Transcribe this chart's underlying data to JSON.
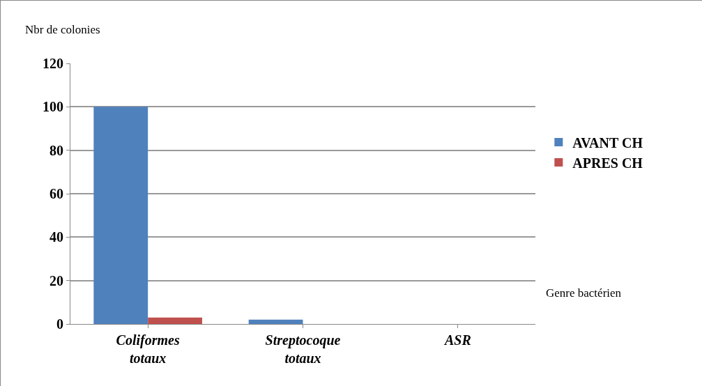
{
  "chart_data": {
    "type": "bar",
    "xlabel": "Genre bactérien",
    "ylabel": "Nbr de colonies",
    "categories": [
      "Coliformes totaux",
      "Streptocoque totaux",
      "ASR"
    ],
    "series": [
      {
        "name": "AVANT CH",
        "color": "#4f81bd",
        "values": [
          100,
          2,
          0
        ]
      },
      {
        "name": "APRES CH",
        "color": "#c0504d",
        "values": [
          3,
          0,
          0
        ]
      }
    ],
    "ylim": [
      0,
      120
    ],
    "yticks": [
      0,
      20,
      40,
      60,
      80,
      100,
      120
    ],
    "grid": "y",
    "legend": "right"
  }
}
